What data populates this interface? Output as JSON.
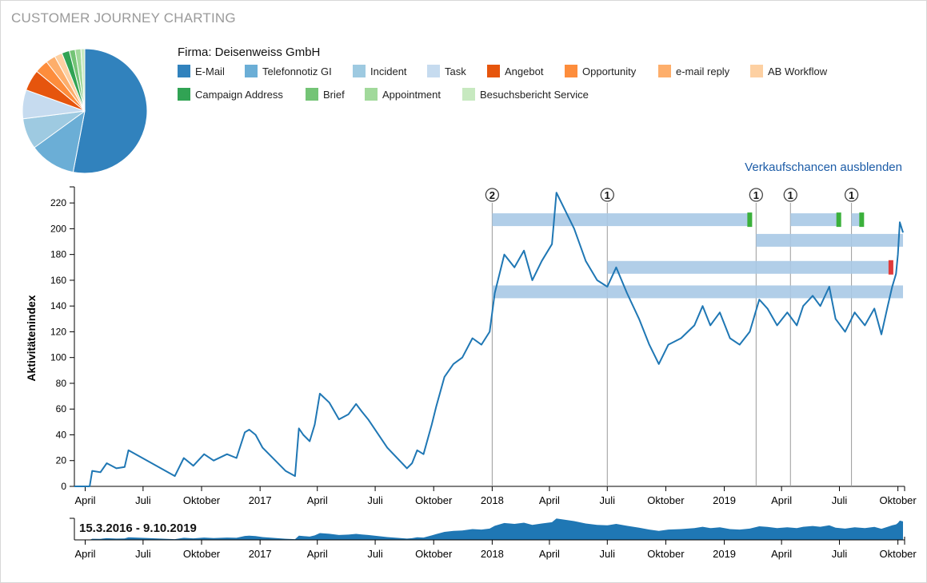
{
  "app": {
    "title": "CUSTOMER JOURNEY CHARTING"
  },
  "legend": {
    "firma_label": "Firma: Deisenweiss GmbH",
    "items": [
      {
        "label": "E-Mail",
        "color": "#3182bd"
      },
      {
        "label": "Telefonnotiz GI",
        "color": "#6baed6"
      },
      {
        "label": "Incident",
        "color": "#9ecae1"
      },
      {
        "label": "Task",
        "color": "#c6dbef"
      },
      {
        "label": "Angebot",
        "color": "#e6550d"
      },
      {
        "label": "Opportunity",
        "color": "#fd8d3c"
      },
      {
        "label": "e-mail reply",
        "color": "#fdae6b"
      },
      {
        "label": "AB Workflow",
        "color": "#fdd0a2"
      },
      {
        "label": "Campaign Address",
        "color": "#31a354"
      },
      {
        "label": "Brief",
        "color": "#74c476"
      },
      {
        "label": "Appointment",
        "color": "#a1d99b"
      },
      {
        "label": "Besuchsbericht Service",
        "color": "#c7e9c0"
      }
    ]
  },
  "toggle_link": "Verkaufschancen ausblenden",
  "chart_data": [
    {
      "type": "pie",
      "title": "",
      "labels": [
        "E-Mail",
        "Telefonnotiz GI",
        "Incident",
        "Task",
        "Angebot",
        "Opportunity",
        "e-mail reply",
        "AB Workflow",
        "Campaign Address",
        "Brief",
        "Appointment",
        "Besuchsbericht Service"
      ],
      "values": [
        53.0,
        12.0,
        8.0,
        7.5,
        5.5,
        3.5,
        2.5,
        2.0,
        2.0,
        1.5,
        1.5,
        1.0
      ]
    },
    {
      "type": "line",
      "title": "",
      "ylabel": "Aktivitätenindex",
      "xlabel": "",
      "x_start": "2016-03-15",
      "x_end": "2019-10-09",
      "ylim": [
        0,
        230
      ],
      "yticks": [
        0,
        20,
        40,
        60,
        80,
        100,
        120,
        140,
        160,
        180,
        200,
        220
      ],
      "xticks": [
        {
          "date": "2016-04-01",
          "label": "April"
        },
        {
          "date": "2016-07-01",
          "label": "Juli"
        },
        {
          "date": "2016-10-01",
          "label": "Oktober"
        },
        {
          "date": "2017-01-01",
          "label": "2017"
        },
        {
          "date": "2017-04-01",
          "label": "April"
        },
        {
          "date": "2017-07-01",
          "label": "Juli"
        },
        {
          "date": "2017-10-01",
          "label": "Oktober"
        },
        {
          "date": "2018-01-01",
          "label": "2018"
        },
        {
          "date": "2018-04-01",
          "label": "April"
        },
        {
          "date": "2018-07-01",
          "label": "Juli"
        },
        {
          "date": "2018-10-01",
          "label": "Oktober"
        },
        {
          "date": "2019-01-01",
          "label": "2019"
        },
        {
          "date": "2019-04-01",
          "label": "April"
        },
        {
          "date": "2019-07-01",
          "label": "Juli"
        },
        {
          "date": "2019-10-01",
          "label": "Oktober"
        }
      ],
      "series": [
        {
          "name": "Aktivitätenindex",
          "color": "#1f77b4",
          "points": [
            [
              "2016-03-15",
              0
            ],
            [
              "2016-04-08",
              0
            ],
            [
              "2016-04-12",
              12
            ],
            [
              "2016-04-25",
              11
            ],
            [
              "2016-05-05",
              18
            ],
            [
              "2016-05-20",
              14
            ],
            [
              "2016-06-02",
              15
            ],
            [
              "2016-06-08",
              28
            ],
            [
              "2016-08-20",
              8
            ],
            [
              "2016-09-03",
              22
            ],
            [
              "2016-09-18",
              16
            ],
            [
              "2016-10-05",
              25
            ],
            [
              "2016-10-20",
              20
            ],
            [
              "2016-11-10",
              25
            ],
            [
              "2016-11-25",
              22
            ],
            [
              "2016-12-08",
              42
            ],
            [
              "2016-12-15",
              44
            ],
            [
              "2016-12-25",
              40
            ],
            [
              "2017-01-05",
              30
            ],
            [
              "2017-02-10",
              12
            ],
            [
              "2017-02-25",
              8
            ],
            [
              "2017-03-03",
              45
            ],
            [
              "2017-03-10",
              40
            ],
            [
              "2017-03-20",
              35
            ],
            [
              "2017-03-28",
              48
            ],
            [
              "2017-04-05",
              72
            ],
            [
              "2017-04-20",
              65
            ],
            [
              "2017-05-05",
              52
            ],
            [
              "2017-05-20",
              56
            ],
            [
              "2017-06-01",
              64
            ],
            [
              "2017-06-10",
              58
            ],
            [
              "2017-06-20",
              52
            ],
            [
              "2017-07-20",
              30
            ],
            [
              "2017-08-20",
              14
            ],
            [
              "2017-08-28",
              18
            ],
            [
              "2017-09-05",
              28
            ],
            [
              "2017-09-15",
              25
            ],
            [
              "2017-09-28",
              48
            ],
            [
              "2017-10-05",
              62
            ],
            [
              "2017-10-18",
              85
            ],
            [
              "2017-11-01",
              95
            ],
            [
              "2017-11-15",
              100
            ],
            [
              "2017-12-01",
              115
            ],
            [
              "2017-12-15",
              110
            ],
            [
              "2017-12-28",
              120
            ],
            [
              "2018-01-05",
              150
            ],
            [
              "2018-01-20",
              180
            ],
            [
              "2018-02-05",
              170
            ],
            [
              "2018-02-20",
              183
            ],
            [
              "2018-03-05",
              160
            ],
            [
              "2018-03-20",
              175
            ],
            [
              "2018-04-05",
              188
            ],
            [
              "2018-04-12",
              228
            ],
            [
              "2018-04-25",
              215
            ],
            [
              "2018-05-10",
              200
            ],
            [
              "2018-05-28",
              175
            ],
            [
              "2018-06-15",
              160
            ],
            [
              "2018-07-01",
              155
            ],
            [
              "2018-07-15",
              170
            ],
            [
              "2018-08-01",
              150
            ],
            [
              "2018-08-20",
              130
            ],
            [
              "2018-09-05",
              110
            ],
            [
              "2018-09-20",
              95
            ],
            [
              "2018-10-05",
              110
            ],
            [
              "2018-10-25",
              115
            ],
            [
              "2018-11-15",
              125
            ],
            [
              "2018-11-28",
              140
            ],
            [
              "2018-12-10",
              125
            ],
            [
              "2018-12-25",
              135
            ],
            [
              "2019-01-10",
              115
            ],
            [
              "2019-01-25",
              110
            ],
            [
              "2019-02-10",
              120
            ],
            [
              "2019-02-25",
              145
            ],
            [
              "2019-03-10",
              138
            ],
            [
              "2019-03-25",
              125
            ],
            [
              "2019-04-10",
              135
            ],
            [
              "2019-04-25",
              125
            ],
            [
              "2019-05-05",
              140
            ],
            [
              "2019-05-20",
              148
            ],
            [
              "2019-06-01",
              140
            ],
            [
              "2019-06-15",
              155
            ],
            [
              "2019-06-25",
              130
            ],
            [
              "2019-07-10",
              120
            ],
            [
              "2019-07-25",
              135
            ],
            [
              "2019-08-10",
              125
            ],
            [
              "2019-08-25",
              138
            ],
            [
              "2019-09-05",
              118
            ],
            [
              "2019-09-15",
              140
            ],
            [
              "2019-09-22",
              155
            ],
            [
              "2019-09-28",
              165
            ],
            [
              "2019-10-01",
              180
            ],
            [
              "2019-10-04",
              205
            ],
            [
              "2019-10-09",
              197
            ]
          ]
        }
      ],
      "markers": [
        {
          "date": "2018-01-01",
          "label": "2"
        },
        {
          "date": "2018-07-01",
          "label": "1"
        },
        {
          "date": "2019-02-20",
          "label": "1"
        },
        {
          "date": "2019-04-15",
          "label": "1"
        },
        {
          "date": "2019-07-20",
          "label": "1"
        }
      ],
      "opportunity_bars": [
        {
          "start": "2018-01-01",
          "end": "2019-02-10",
          "value": 207,
          "end_color": "#3bb03b"
        },
        {
          "start": "2019-04-15",
          "end": "2019-06-30",
          "value": 207,
          "end_color": "#3bb03b"
        },
        {
          "start": "2019-07-20",
          "end": "2019-08-05",
          "value": 207,
          "end_color": "#3bb03b"
        },
        {
          "start": "2019-02-20",
          "end": "2019-10-09",
          "value": 191,
          "end_color": ""
        },
        {
          "start": "2018-07-01",
          "end": "2019-09-20",
          "value": 170,
          "end_color": "#e03a3a"
        },
        {
          "start": "2018-01-01",
          "end": "2019-10-09",
          "value": 151,
          "end_color": ""
        }
      ]
    },
    {
      "type": "area",
      "title": "",
      "range_label": "15.3.2016 - 9.10.2019",
      "x_start": "2016-03-15",
      "x_end": "2019-10-09",
      "xticks": [
        {
          "date": "2016-04-01",
          "label": "April"
        },
        {
          "date": "2016-07-01",
          "label": "Juli"
        },
        {
          "date": "2016-10-01",
          "label": "Oktober"
        },
        {
          "date": "2017-01-01",
          "label": "2017"
        },
        {
          "date": "2017-04-01",
          "label": "April"
        },
        {
          "date": "2017-07-01",
          "label": "Juli"
        },
        {
          "date": "2017-10-01",
          "label": "Oktober"
        },
        {
          "date": "2018-01-01",
          "label": "2018"
        },
        {
          "date": "2018-04-01",
          "label": "April"
        },
        {
          "date": "2018-07-01",
          "label": "Juli"
        },
        {
          "date": "2018-10-01",
          "label": "Oktober"
        },
        {
          "date": "2019-01-01",
          "label": "2019"
        },
        {
          "date": "2019-04-01",
          "label": "April"
        },
        {
          "date": "2019-07-01",
          "label": "Juli"
        },
        {
          "date": "2019-10-01",
          "label": "Oktober"
        }
      ],
      "series_ref": "Aktivitätenindex",
      "color": "#1f77b4"
    }
  ]
}
